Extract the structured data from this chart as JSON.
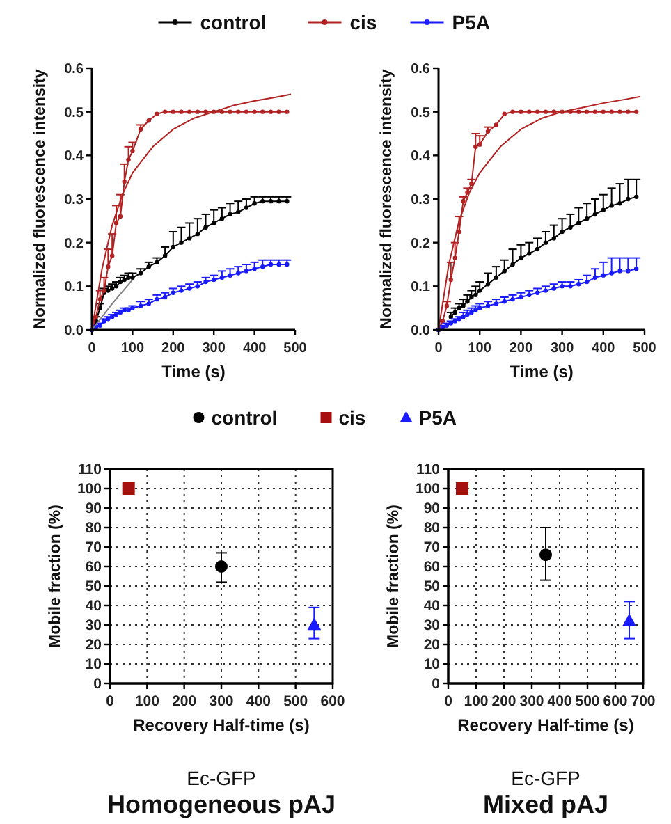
{
  "chart_data": [
    {
      "type": "line",
      "xlabel": "Time (s)",
      "ylabel": "Normalized fluorescence intensity",
      "xlim": [
        0,
        500
      ],
      "ylim": [
        0,
        0.6
      ],
      "xticks": [
        0,
        100,
        200,
        300,
        400,
        500
      ],
      "yticks": [
        {
          "value": 0,
          "label": "0.0"
        },
        0.1,
        0.2,
        0.3,
        0.4,
        0.5,
        0.6
      ],
      "marker": "circle",
      "legend": "top",
      "x": [
        0,
        10,
        20,
        30,
        40,
        50,
        60,
        70,
        80,
        90,
        100,
        120,
        140,
        160,
        180,
        200,
        220,
        240,
        260,
        280,
        300,
        320,
        340,
        360,
        380,
        400,
        420,
        440,
        460,
        480
      ],
      "series": [
        {
          "name": "control",
          "color": "#000000",
          "values": [
            0,
            0.02,
            0.05,
            0.085,
            0.09,
            0.095,
            0.1,
            0.11,
            0.115,
            0.12,
            0.12,
            0.13,
            0.145,
            0.155,
            0.17,
            0.19,
            0.2,
            0.21,
            0.22,
            0.235,
            0.245,
            0.255,
            0.265,
            0.27,
            0.28,
            0.29,
            0.295,
            0.295,
            0.295,
            0.295
          ],
          "errors": [
            null,
            [
              0.02,
              0.03
            ],
            [
              0.05,
              0.06
            ],
            [
              0.085,
              0.095
            ],
            [
              0.09,
              0.1
            ],
            [
              0.095,
              0.105
            ],
            [
              0.1,
              0.11
            ],
            [
              0.11,
              0.12
            ],
            [
              0.115,
              0.125
            ],
            [
              0.12,
              0.13
            ],
            [
              0.12,
              0.13
            ],
            [
              0.13,
              0.14
            ],
            [
              0.145,
              0.155
            ],
            [
              0.155,
              0.165
            ],
            [
              0.17,
              0.19
            ],
            [
              0.19,
              0.225
            ],
            [
              0.2,
              0.235
            ],
            [
              0.21,
              0.245
            ],
            [
              0.22,
              0.255
            ],
            [
              0.235,
              0.265
            ],
            [
              0.245,
              0.275
            ],
            [
              0.255,
              0.28
            ],
            [
              0.265,
              0.29
            ],
            [
              0.27,
              0.295
            ],
            [
              0.28,
              0.3
            ],
            [
              0.29,
              0.305
            ],
            [
              0.295,
              0.305
            ],
            [
              0.295,
              0.305
            ],
            [
              0.295,
              0.305
            ],
            [
              0.295,
              0.305
            ]
          ]
        },
        {
          "name": "cis",
          "color": "#b22222",
          "values": [
            0,
            0.03,
            0.07,
            0.09,
            0.145,
            0.17,
            0.245,
            0.26,
            0.34,
            0.39,
            0.41,
            0.46,
            0.48,
            0.495,
            0.5,
            0.5,
            0.5,
            0.5,
            0.5,
            0.5,
            0.5,
            0.5,
            0.5,
            0.5,
            0.5,
            0.5,
            0.5,
            0.5,
            0.5,
            0.5
          ],
          "errors": [
            null,
            null,
            [
              0.07,
              0.09
            ],
            [
              0.09,
              0.12
            ],
            [
              0.145,
              0.185
            ],
            [
              0.17,
              0.22
            ],
            [
              0.245,
              0.285
            ],
            [
              0.26,
              0.31
            ],
            [
              0.34,
              0.38
            ],
            [
              0.39,
              0.42
            ],
            [
              0.41,
              0.43
            ],
            [
              0.46,
              0.47
            ],
            null,
            null,
            null,
            null,
            null,
            null,
            null,
            null,
            null,
            null,
            null,
            null,
            null,
            null,
            null,
            null,
            null,
            null
          ]
        },
        {
          "name": "P5A",
          "color": "#1a1aff",
          "values": [
            0,
            0.005,
            0.01,
            0.02,
            0.025,
            0.03,
            0.035,
            0.04,
            0.045,
            0.045,
            0.05,
            0.055,
            0.06,
            0.07,
            0.075,
            0.085,
            0.09,
            0.095,
            0.1,
            0.11,
            0.115,
            0.12,
            0.125,
            0.13,
            0.135,
            0.14,
            0.145,
            0.15,
            0.15,
            0.15
          ],
          "errors": [
            null,
            [
              0.005,
              0.01
            ],
            [
              0.01,
              0.015
            ],
            [
              0.02,
              0.025
            ],
            [
              0.025,
              0.03
            ],
            [
              0.03,
              0.035
            ],
            [
              0.035,
              0.04
            ],
            [
              0.04,
              0.045
            ],
            [
              0.045,
              0.05
            ],
            [
              0.045,
              0.05
            ],
            [
              0.05,
              0.055
            ],
            [
              0.055,
              0.065
            ],
            [
              0.06,
              0.07
            ],
            [
              0.07,
              0.08
            ],
            [
              0.075,
              0.085
            ],
            [
              0.085,
              0.095
            ],
            [
              0.09,
              0.1
            ],
            [
              0.095,
              0.105
            ],
            [
              0.1,
              0.11
            ],
            [
              0.11,
              0.12
            ],
            [
              0.115,
              0.125
            ],
            [
              0.12,
              0.135
            ],
            [
              0.125,
              0.14
            ],
            [
              0.13,
              0.145
            ],
            [
              0.135,
              0.15
            ],
            [
              0.14,
              0.155
            ],
            [
              0.145,
              0.16
            ],
            [
              0.15,
              0.16
            ],
            [
              0.15,
              0.16
            ],
            [
              0.15,
              0.16
            ]
          ]
        },
        {
          "color": "#b22222",
          "marker": "none",
          "x": [
            0,
            25,
            50,
            75,
            100,
            150,
            200,
            250,
            300,
            350,
            400,
            450,
            490
          ],
          "values": [
            0,
            0.14,
            0.24,
            0.31,
            0.36,
            0.42,
            0.46,
            0.485,
            0.5,
            0.515,
            0.525,
            0.533,
            0.54
          ]
        },
        {
          "color": "#808080",
          "marker": "none",
          "x": [
            0,
            50,
            100
          ],
          "values": [
            0,
            0.06,
            0.115
          ]
        }
      ]
    },
    {
      "type": "line",
      "xlabel": "Time (s)",
      "ylabel": "Normalized fluorescence intensity",
      "xlim": [
        0,
        500
      ],
      "ylim": [
        0,
        0.6
      ],
      "xticks": [
        0,
        100,
        200,
        300,
        400,
        500
      ],
      "yticks": [
        {
          "value": 0,
          "label": "0.0"
        },
        0.1,
        0.2,
        0.3,
        0.4,
        0.5,
        0.6
      ],
      "marker": "circle",
      "x": [
        0,
        10,
        20,
        30,
        40,
        50,
        60,
        70,
        80,
        90,
        100,
        120,
        140,
        160,
        180,
        200,
        220,
        240,
        260,
        280,
        300,
        320,
        340,
        360,
        380,
        400,
        420,
        440,
        460,
        480
      ],
      "series": [
        {
          "color": "#000000",
          "values": [
            0,
            null,
            null,
            0.03,
            0.04,
            0.05,
            0.055,
            0.065,
            0.075,
            0.08,
            0.09,
            0.105,
            0.12,
            0.135,
            0.15,
            0.165,
            0.175,
            0.185,
            0.2,
            0.21,
            0.225,
            0.235,
            0.245,
            0.255,
            0.265,
            0.275,
            0.285,
            0.29,
            0.3,
            0.305
          ],
          "errors": [
            null,
            null,
            null,
            [
              0.03,
              0.04
            ],
            [
              0.04,
              0.05
            ],
            [
              0.05,
              0.06
            ],
            [
              0.055,
              0.07
            ],
            [
              0.065,
              0.08
            ],
            [
              0.075,
              0.09
            ],
            [
              0.08,
              0.1
            ],
            [
              0.09,
              0.11
            ],
            [
              0.105,
              0.13
            ],
            [
              0.12,
              0.145
            ],
            [
              0.135,
              0.16
            ],
            [
              0.15,
              0.185
            ],
            [
              0.165,
              0.195
            ],
            [
              0.175,
              0.2
            ],
            [
              0.185,
              0.21
            ],
            [
              0.2,
              0.225
            ],
            [
              0.21,
              0.24
            ],
            [
              0.225,
              0.255
            ],
            [
              0.235,
              0.265
            ],
            [
              0.245,
              0.28
            ],
            [
              0.255,
              0.29
            ],
            [
              0.265,
              0.3
            ],
            [
              0.275,
              0.31
            ],
            [
              0.285,
              0.325
            ],
            [
              0.29,
              0.335
            ],
            [
              0.3,
              0.345
            ],
            [
              0.305,
              0.345
            ]
          ]
        },
        {
          "color": "#b22222",
          "values": [
            0,
            0.02,
            0.055,
            0.115,
            0.165,
            0.225,
            0.295,
            0.315,
            0.335,
            0.42,
            0.425,
            0.455,
            0.47,
            0.495,
            0.5,
            0.5,
            0.5,
            0.5,
            0.5,
            0.5,
            0.5,
            0.5,
            0.5,
            0.5,
            0.5,
            0.5,
            0.5,
            0.5,
            0.5,
            0.5
          ],
          "errors": [
            null,
            null,
            [
              0.055,
              0.065
            ],
            [
              0.115,
              0.155
            ],
            [
              0.165,
              0.2
            ],
            [
              0.225,
              0.26
            ],
            [
              0.295,
              0.305
            ],
            [
              0.315,
              0.325
            ],
            [
              0.335,
              0.345
            ],
            [
              0.42,
              0.45
            ],
            [
              0.425,
              0.445
            ],
            [
              0.455,
              0.465
            ],
            null,
            null,
            null,
            null,
            null,
            null,
            null,
            null,
            null,
            null,
            null,
            null,
            null,
            null,
            null,
            null,
            null,
            null
          ]
        },
        {
          "color": "#1a1aff",
          "values": [
            0,
            0.005,
            0.01,
            0.015,
            0.02,
            0.025,
            0.03,
            0.035,
            0.04,
            0.045,
            0.05,
            0.055,
            0.06,
            0.065,
            0.07,
            0.075,
            0.08,
            0.085,
            0.09,
            0.095,
            0.1,
            0.1,
            0.105,
            0.11,
            0.12,
            0.125,
            0.13,
            0.135,
            0.135,
            0.14
          ],
          "errors": [
            null,
            [
              0.005,
              0.01
            ],
            [
              0.01,
              0.015
            ],
            [
              0.015,
              0.02
            ],
            [
              0.02,
              0.025
            ],
            [
              0.025,
              0.03
            ],
            [
              0.03,
              0.04
            ],
            [
              0.035,
              0.045
            ],
            [
              0.04,
              0.05
            ],
            [
              0.045,
              0.055
            ],
            [
              0.05,
              0.06
            ],
            [
              0.055,
              0.065
            ],
            [
              0.06,
              0.07
            ],
            [
              0.065,
              0.075
            ],
            [
              0.07,
              0.08
            ],
            [
              0.075,
              0.085
            ],
            [
              0.08,
              0.09
            ],
            [
              0.085,
              0.095
            ],
            [
              0.09,
              0.1
            ],
            [
              0.095,
              0.105
            ],
            [
              0.1,
              0.11
            ],
            [
              0.1,
              0.11
            ],
            [
              0.105,
              0.115
            ],
            [
              0.11,
              0.125
            ],
            [
              0.12,
              0.14
            ],
            [
              0.125,
              0.155
            ],
            [
              0.13,
              0.165
            ],
            [
              0.135,
              0.165
            ],
            [
              0.135,
              0.165
            ],
            [
              0.14,
              0.165
            ]
          ]
        },
        {
          "color": "#b22222",
          "marker": "none",
          "x": [
            0,
            25,
            50,
            75,
            100,
            150,
            200,
            250,
            300,
            350,
            400,
            450,
            490
          ],
          "values": [
            0,
            0.15,
            0.25,
            0.315,
            0.36,
            0.42,
            0.46,
            0.485,
            0.5,
            0.51,
            0.52,
            0.528,
            0.535
          ]
        }
      ]
    },
    {
      "type": "scatter",
      "title": "Homogeneous pAJ",
      "subtitle": "Ec-GFP",
      "xlabel": "Recovery Half-time (s)",
      "ylabel": "Mobile fraction (%)",
      "xlim": [
        0,
        600
      ],
      "ylim": [
        0,
        110
      ],
      "xticks": [
        0,
        100,
        200,
        300,
        400,
        500,
        600
      ],
      "yticks": [
        0,
        10,
        20,
        30,
        40,
        50,
        60,
        70,
        80,
        90,
        100,
        110
      ],
      "grid": true,
      "legend": "top",
      "series": [
        {
          "name": "control",
          "color": "#000000",
          "marker": "circle",
          "x": [
            300
          ],
          "values": [
            60
          ],
          "errors": [
            [
              52,
              67
            ]
          ]
        },
        {
          "name": "cis",
          "color": "#a50f0f",
          "marker": "square",
          "x": [
            50
          ],
          "values": [
            100
          ]
        },
        {
          "name": "P5A",
          "color": "#1a1aff",
          "marker": "triangle",
          "x": [
            550
          ],
          "values": [
            30
          ],
          "errors": [
            [
              23,
              39
            ]
          ]
        }
      ]
    },
    {
      "type": "scatter",
      "title": "Mixed pAJ",
      "subtitle": "Ec-GFP",
      "xlabel": "Recovery Half-time (s)",
      "ylabel": "Mobile fraction (%)",
      "xlim": [
        0,
        700
      ],
      "ylim": [
        0,
        110
      ],
      "xticks": [
        0,
        100,
        200,
        300,
        400,
        500,
        600,
        700
      ],
      "yticks": [
        0,
        10,
        20,
        30,
        40,
        50,
        60,
        70,
        80,
        90,
        100,
        110
      ],
      "grid": true,
      "series": [
        {
          "color": "#000000",
          "marker": "circle",
          "x": [
            350
          ],
          "values": [
            66
          ],
          "errors": [
            [
              53,
              80
            ]
          ]
        },
        {
          "color": "#a50f0f",
          "marker": "square",
          "x": [
            50
          ],
          "values": [
            100
          ]
        },
        {
          "color": "#1a1aff",
          "marker": "triangle",
          "x": [
            650
          ],
          "values": [
            32
          ],
          "errors": [
            [
              23,
              42
            ]
          ]
        }
      ]
    }
  ]
}
